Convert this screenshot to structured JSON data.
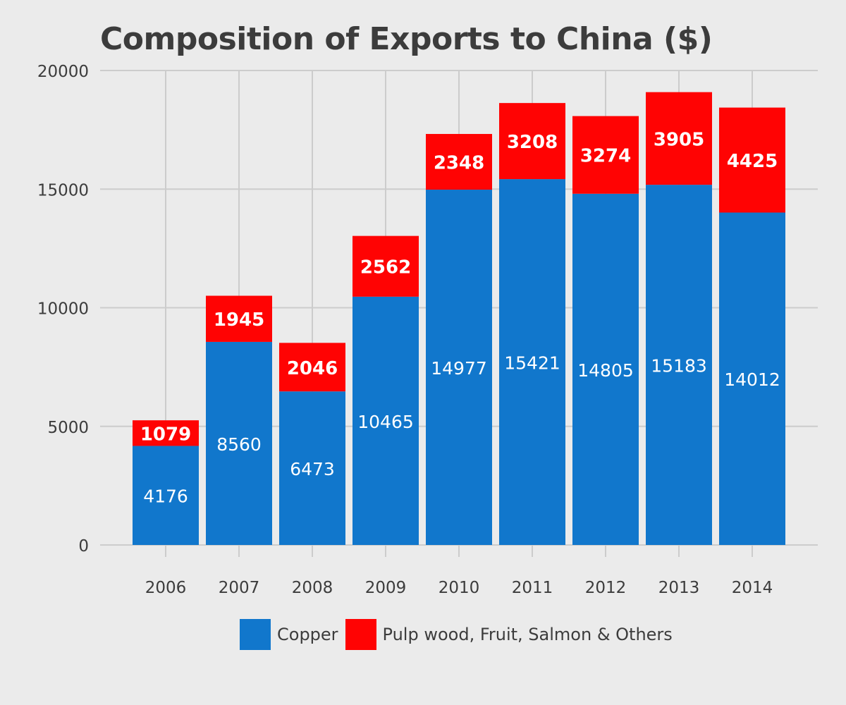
{
  "chart_data": {
    "type": "bar",
    "stacked": true,
    "title": "Composition of Exports to China ($)",
    "xlabel": "",
    "ylabel": "",
    "categories": [
      "2006",
      "2007",
      "2008",
      "2009",
      "2010",
      "2011",
      "2012",
      "2013",
      "2014"
    ],
    "series": [
      {
        "name": "Copper",
        "color": "#1177cc",
        "values": [
          4176,
          8560,
          6473,
          10465,
          14977,
          15421,
          14805,
          15183,
          14012
        ],
        "labels": [
          "4176",
          "8560",
          "6473",
          "10465",
          "14977",
          "15421",
          "14805",
          "15183",
          "14012"
        ]
      },
      {
        "name": "Pulp wood, Fruit, Salmon & Others",
        "color": "#ff0303",
        "values": [
          1079,
          1945,
          2046,
          2562,
          2348,
          3208,
          3274,
          3905,
          4425
        ],
        "labels": [
          "1079",
          "1945",
          "2046",
          "2562",
          "2348",
          "3208",
          "3274",
          "3905",
          "4425"
        ]
      }
    ],
    "ylim": [
      0,
      20000
    ],
    "yticks": [
      0,
      5000,
      10000,
      15000,
      20000
    ],
    "ytick_labels": [
      "0",
      "5000",
      "10000",
      "15000",
      "20000"
    ],
    "grid": true,
    "legend_position": "bottom",
    "background": "#ebebeb",
    "grid_color": "#cccccc",
    "text_color": "#3c3c3c",
    "label_color": "#ffffff"
  }
}
